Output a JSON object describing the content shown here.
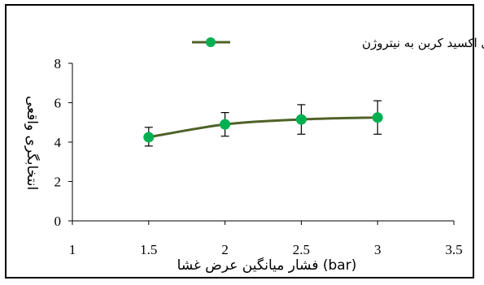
{
  "chart_data": {
    "type": "line",
    "title": "",
    "xlabel": "فشار میانگین عرض غشا (bar)",
    "ylabel": "انتخابگری واقعی",
    "xlim": [
      1,
      3.5
    ],
    "ylim": [
      0,
      8
    ],
    "x_ticks": [
      "1",
      "1.5",
      "2",
      "2.5",
      "3",
      "3.5"
    ],
    "y_ticks": [
      "0",
      "2",
      "4",
      "6",
      "8"
    ],
    "x_tick_values": [
      1,
      1.5,
      2,
      2.5,
      3,
      3.5
    ],
    "y_tick_values": [
      0,
      2,
      4,
      6,
      8
    ],
    "legend_position": "top-center",
    "series": [
      {
        "name": "دی اکسید کربن به نیتروژن",
        "line_color": "#4f6228",
        "marker_color": "#00b050",
        "points": [
          {
            "x": 1.5,
            "y": 4.25,
            "err_low": 3.8,
            "err_high": 4.75
          },
          {
            "x": 2.0,
            "y": 4.9,
            "err_low": 4.3,
            "err_high": 5.5
          },
          {
            "x": 2.5,
            "y": 5.15,
            "err_low": 4.4,
            "err_high": 5.9
          },
          {
            "x": 3.0,
            "y": 5.25,
            "err_low": 4.4,
            "err_high": 6.1
          }
        ]
      }
    ]
  }
}
